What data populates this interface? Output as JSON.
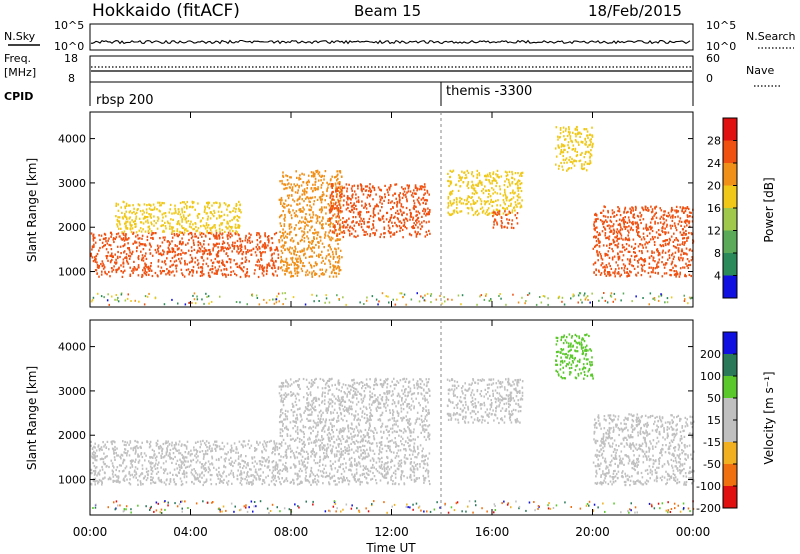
{
  "header": {
    "station": "Hokkaido (fitACF)",
    "beam": "Beam 15",
    "date": "18/Feb/2015"
  },
  "panels": {
    "nsky_label": "N.Sky",
    "nsearch_label": "N.Search",
    "freq_label_1": "Freq.",
    "freq_label_2": "[MHz]",
    "nave_label": "Nave",
    "cpid_label": "CPID",
    "cpid_1": "rbsp 200",
    "cpid_2": "themis -3300",
    "nsky_ticks": [
      "10^5",
      "10^0"
    ],
    "nsearch_ticks": [
      "10^5",
      "10^0"
    ],
    "freq_ticks": [
      "18",
      "8"
    ],
    "nave_ticks": [
      "60",
      "0"
    ]
  },
  "colors": {
    "power_scale": [
      "#1010e0",
      "#2a8a5a",
      "#5aaa5a",
      "#a0c84a",
      "#f0c818",
      "#f09018",
      "#f05010",
      "#e01010"
    ],
    "velocity_scale": [
      "#1010e0",
      "#2a7a5a",
      "#5ac82a",
      "#c0c0c0",
      "#c0c0c0",
      "#f0b020",
      "#f07010",
      "#e01010"
    ],
    "ground_scatter": "#c0c0c0"
  },
  "chart_data": [
    {
      "type": "heatmap",
      "name_hint": "power",
      "xlabel": "",
      "ylabel": "Slant Range [km]",
      "x_ticks": [
        "00:00",
        "04:00",
        "08:00",
        "12:00",
        "16:00",
        "20:00",
        "00:00"
      ],
      "y_ticks": [
        1000,
        2000,
        3000,
        4000
      ],
      "ylim": [
        200,
        4600
      ],
      "colorbar_label": "Power [dB]",
      "colorbar_ticks": [
        4,
        8,
        12,
        16,
        20,
        24,
        28
      ],
      "regions": [
        {
          "t": [
            0,
            7.5
          ],
          "r": [
            900,
            1900
          ],
          "level": 28
        },
        {
          "t": [
            1,
            6
          ],
          "r": [
            1900,
            2600
          ],
          "level": 20
        },
        {
          "t": [
            7.5,
            10
          ],
          "r": [
            900,
            3300
          ],
          "level": 24
        },
        {
          "t": [
            9.5,
            13.5
          ],
          "r": [
            1800,
            3000
          ],
          "level": 26
        },
        {
          "t": [
            14.2,
            17.2
          ],
          "r": [
            2300,
            3300
          ],
          "level": 18
        },
        {
          "t": [
            16,
            17
          ],
          "r": [
            2000,
            2400
          ],
          "level": 26
        },
        {
          "t": [
            20,
            24
          ],
          "r": [
            900,
            2500
          ],
          "level": 28
        },
        {
          "t": [
            18.5,
            20
          ],
          "r": [
            3300,
            4300
          ],
          "level": 20
        }
      ]
    },
    {
      "type": "heatmap",
      "name_hint": "velocity",
      "xlabel": "Time UT",
      "ylabel": "Slant Range [km]",
      "x_ticks": [
        "00:00",
        "04:00",
        "08:00",
        "12:00",
        "16:00",
        "20:00",
        "00:00"
      ],
      "y_ticks": [
        1000,
        2000,
        3000,
        4000
      ],
      "ylim": [
        200,
        4600
      ],
      "colorbar_label": "Velocity [m s⁻¹]",
      "colorbar_ticks": [
        200,
        100,
        50,
        15,
        -15,
        -50,
        -100,
        -200
      ],
      "regions": [
        {
          "t": [
            0,
            7.5
          ],
          "r": [
            900,
            1900
          ],
          "level": 0
        },
        {
          "t": [
            7.5,
            13.5
          ],
          "r": [
            900,
            3300
          ],
          "level": 0
        },
        {
          "t": [
            14.2,
            17.2
          ],
          "r": [
            2300,
            3300
          ],
          "level": 0
        },
        {
          "t": [
            20,
            24
          ],
          "r": [
            900,
            2500
          ],
          "level": 0
        },
        {
          "t": [
            18.5,
            20
          ],
          "r": [
            3300,
            4300
          ],
          "level": 60
        }
      ]
    }
  ]
}
